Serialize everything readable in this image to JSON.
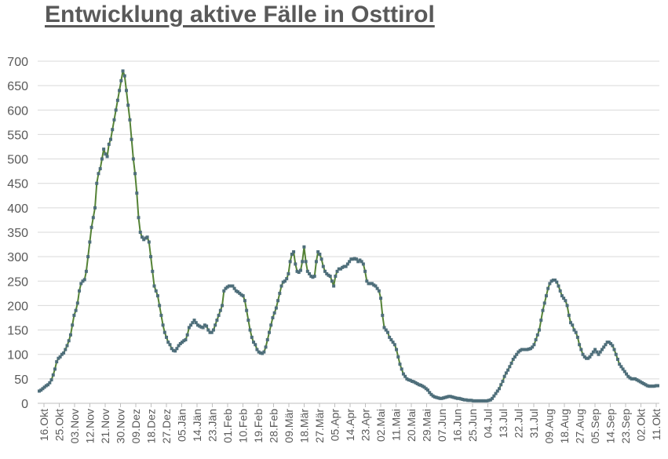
{
  "chart_data": {
    "type": "line",
    "title": "Entwicklung aktive Fälle in Osttirol",
    "xlabel": "",
    "ylabel": "",
    "ylim": [
      0,
      700
    ],
    "yticks": [
      0,
      50,
      100,
      150,
      200,
      250,
      300,
      350,
      400,
      450,
      500,
      550,
      600,
      650,
      700
    ],
    "grid": true,
    "legend": "none",
    "colors": {
      "line": "#548235",
      "marker": "#4e6e7a",
      "grid": "#d9d9d9",
      "text": "#595959"
    },
    "x_tick_labels": [
      "16.Okt",
      "25.Okt",
      "03.Nov",
      "12.Nov",
      "21.Nov",
      "30.Nov",
      "09.Dez",
      "18.Dez",
      "27.Dez",
      "05.Jän",
      "14.Jän",
      "23.Jän",
      "01.Feb",
      "10.Feb",
      "19.Feb",
      "28.Feb",
      "09.Mär",
      "18.Mär",
      "27.Mär",
      "05.Apr",
      "14.Apr",
      "23.Apr",
      "02.Mai",
      "11.Mai",
      "20.Mai",
      "29.Mai",
      "07.Jun",
      "16.Jun",
      "25.Jun",
      "04.Jul",
      "13.Jul",
      "22.Jul",
      "31.Jul",
      "09.Aug",
      "18.Aug",
      "27.Aug",
      "05.Sep",
      "14.Sep",
      "23.Sep",
      "02.Okt",
      "11.Okt"
    ],
    "series": [
      {
        "values": [
          25,
          27,
          30,
          33,
          36,
          38,
          42,
          48,
          58,
          70,
          85,
          92,
          95,
          100,
          103,
          110,
          118,
          128,
          140,
          160,
          180,
          190,
          205,
          230,
          245,
          250,
          253,
          270,
          300,
          330,
          360,
          380,
          400,
          450,
          470,
          480,
          500,
          520,
          510,
          505,
          530,
          540,
          560,
          580,
          600,
          620,
          640,
          660,
          680,
          670,
          640,
          610,
          580,
          540,
          500,
          470,
          430,
          380,
          350,
          340,
          335,
          338,
          340,
          330,
          300,
          270,
          240,
          230,
          220,
          200,
          180,
          160,
          145,
          135,
          125,
          120,
          112,
          108,
          107,
          112,
          118,
          122,
          125,
          128,
          130,
          140,
          155,
          160,
          165,
          170,
          165,
          160,
          158,
          156,
          155,
          160,
          158,
          150,
          145,
          145,
          150,
          160,
          170,
          180,
          190,
          200,
          230,
          235,
          238,
          240,
          240,
          240,
          235,
          230,
          228,
          225,
          222,
          220,
          210,
          190,
          170,
          150,
          135,
          125,
          120,
          110,
          105,
          103,
          102,
          105,
          115,
          130,
          145,
          160,
          175,
          185,
          195,
          210,
          225,
          240,
          248,
          250,
          255,
          265,
          290,
          305,
          310,
          285,
          270,
          268,
          272,
          290,
          320,
          290,
          270,
          265,
          260,
          258,
          260,
          290,
          310,
          305,
          295,
          280,
          270,
          265,
          262,
          260,
          250,
          240,
          260,
          270,
          275,
          275,
          278,
          280,
          280,
          285,
          290,
          295,
          295,
          296,
          295,
          290,
          293,
          290,
          285,
          270,
          250,
          245,
          245,
          245,
          242,
          240,
          235,
          230,
          215,
          180,
          155,
          150,
          145,
          135,
          130,
          125,
          120,
          110,
          95,
          80,
          70,
          60,
          55,
          50,
          48,
          47,
          45,
          44,
          42,
          40,
          38,
          37,
          35,
          33,
          30,
          27,
          22,
          18,
          15,
          13,
          12,
          11,
          10,
          10,
          11,
          12,
          13,
          14,
          14,
          13,
          12,
          11,
          10,
          10,
          9,
          8,
          7,
          7,
          6,
          6,
          6,
          5,
          5,
          5,
          5,
          5,
          5,
          5,
          5,
          5,
          6,
          7,
          10,
          15,
          20,
          25,
          30,
          38,
          45,
          55,
          62,
          68,
          75,
          82,
          90,
          95,
          100,
          105,
          108,
          110,
          110,
          110,
          110,
          111,
          112,
          115,
          120,
          130,
          140,
          150,
          170,
          190,
          205,
          220,
          235,
          245,
          250,
          252,
          252,
          248,
          240,
          230,
          220,
          215,
          210,
          200,
          180,
          165,
          160,
          150,
          145,
          135,
          120,
          110,
          100,
          95,
          92,
          92,
          95,
          100,
          105,
          110,
          105,
          100,
          105,
          110,
          115,
          120,
          125,
          125,
          122,
          118,
          110,
          100,
          90,
          80,
          75,
          70,
          65,
          60,
          55,
          52,
          50,
          50,
          50,
          48,
          46,
          44,
          42,
          40,
          38,
          36,
          35,
          35,
          35,
          35,
          36,
          36
        ]
      }
    ]
  }
}
